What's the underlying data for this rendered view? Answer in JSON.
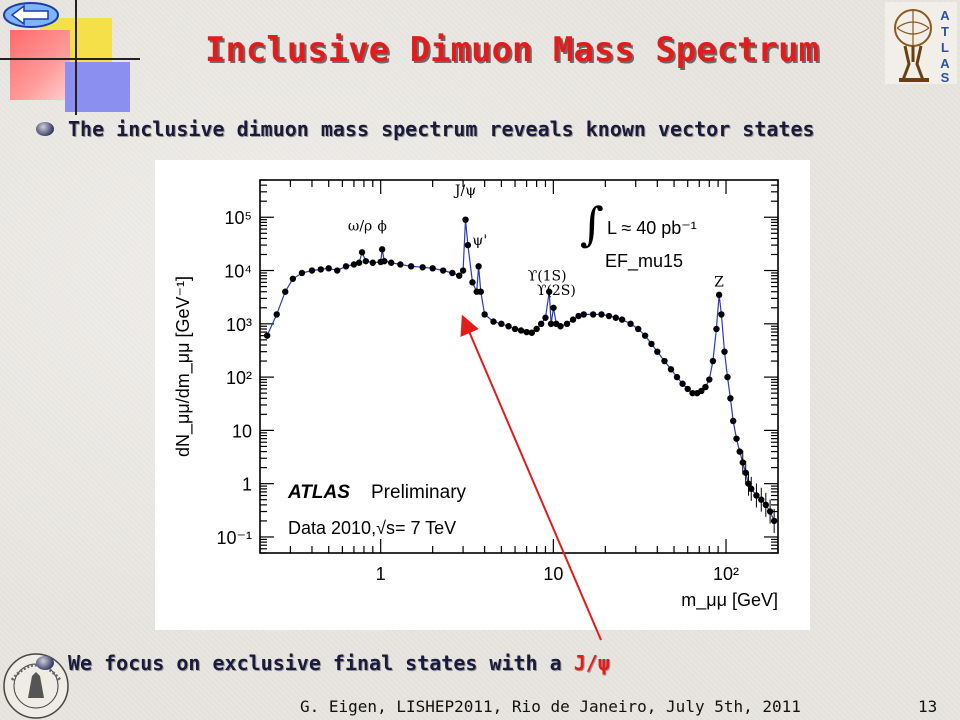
{
  "slide": {
    "title": "Inclusive Dimuon Mass Spectrum",
    "bullet1": "The inclusive dimuon mass spectrum reveals known vector states",
    "bullet2_prefix": "We focus on exclusive final states with a ",
    "bullet2_highlight": "J/ψ",
    "footer": "G. Eigen, LISHEP2011, Rio de Janeiro, July 5th, 2011",
    "page_number": "13",
    "logo_letters": [
      "A",
      "T",
      "L",
      "A",
      "S"
    ],
    "accent_color": "#e41b1b"
  },
  "chart_data": {
    "type": "scatter",
    "xlabel": "m_μμ [GeV]",
    "ylabel": "dN_μμ/dm_μμ [GeV⁻¹]",
    "x_scale": "log",
    "y_scale": "log",
    "xlim": [
      0.2,
      200
    ],
    "ylim": [
      0.05,
      500000
    ],
    "x_tick_labels": [
      "1",
      "10",
      "10²"
    ],
    "y_tick_labels": [
      "10⁵",
      "10⁴",
      "10³",
      "10²",
      "10",
      "1",
      "10⁻¹"
    ],
    "annotations": [
      "ω/ρ",
      "ϕ",
      "J/ψ",
      "ψ'",
      "ϒ(1S)",
      "ϒ(2S)",
      "Z"
    ],
    "luminosity_text": "L ≈ 40 pb⁻¹",
    "trigger_text": "EF_mu15",
    "experiment_label": "ATLAS",
    "experiment_sublabel": "Preliminary",
    "dataset_text": "Data 2010,√s= 7 TeV",
    "series": [
      {
        "x": [
          0.22,
          0.25,
          0.28,
          0.31,
          0.35,
          0.4,
          0.45,
          0.5,
          0.56,
          0.63,
          0.7,
          0.75,
          0.78,
          0.82,
          0.9,
          1.0,
          1.02,
          1.05,
          1.15,
          1.3,
          1.5,
          1.75,
          2.0,
          2.3,
          2.6,
          2.85,
          3.0,
          3.1,
          3.2,
          3.4,
          3.6,
          3.69,
          3.8,
          4.0,
          4.5,
          5.0,
          5.5,
          6.0,
          6.5,
          7.0,
          7.5,
          8.0,
          8.5,
          9.0,
          9.46,
          9.7,
          10.02,
          10.4,
          11.0,
          12.0,
          13.0,
          14.0,
          15.0,
          17.0,
          19.0,
          21.0,
          23.0,
          25.0,
          28.0,
          31.0,
          34.0,
          37.0,
          40.0,
          44.0,
          48.0,
          52.0,
          56.0,
          60.0,
          64.0,
          68.0,
          72.0,
          76.0,
          80.0,
          84.0,
          88.0,
          91.2,
          94.0,
          98.0,
          102,
          106,
          110,
          115,
          120,
          125,
          130,
          135,
          140,
          150,
          160,
          170,
          180,
          190
        ],
        "y": [
          600,
          1500,
          4000,
          7000,
          9000,
          10000,
          10500,
          11000,
          10000,
          12000,
          13000,
          14000,
          22000,
          15000,
          14000,
          14500,
          25000,
          15000,
          14000,
          13000,
          12000,
          11500,
          11000,
          10000,
          9000,
          8000,
          10000,
          90000,
          30000,
          6000,
          4000,
          12000,
          4000,
          1500,
          1100,
          1000,
          900,
          800,
          750,
          700,
          680,
          800,
          1000,
          1300,
          4000,
          1000,
          2000,
          1000,
          900,
          1000,
          1200,
          1400,
          1500,
          1500,
          1500,
          1400,
          1300,
          1200,
          1000,
          800,
          600,
          420,
          300,
          200,
          140,
          100,
          75,
          60,
          50,
          50,
          55,
          65,
          90,
          200,
          800,
          3500,
          1500,
          300,
          100,
          40,
          15,
          7,
          4,
          2.5,
          1.6,
          1.0,
          0.8,
          0.6,
          0.5,
          0.4,
          0.3,
          0.2
        ]
      }
    ]
  }
}
